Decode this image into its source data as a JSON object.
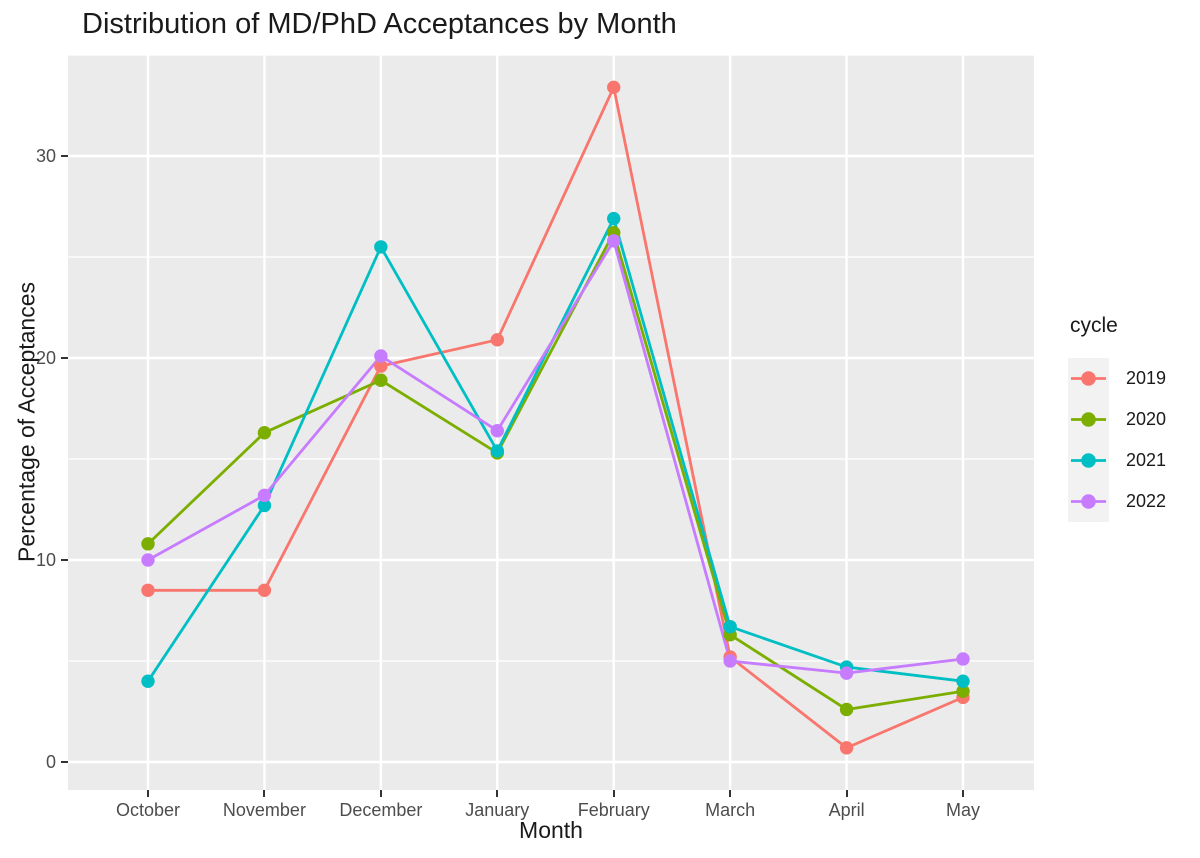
{
  "title": "Distribution of MD/PhD Acceptances by Month",
  "chart_data": {
    "type": "line",
    "title": "Distribution of MD/PhD Acceptances by Month",
    "xlabel": "Month",
    "ylabel": "Percentage of Acceptances",
    "categories": [
      "October",
      "November",
      "December",
      "January",
      "February",
      "March",
      "April",
      "May"
    ],
    "series": [
      {
        "name": "2019",
        "color": "#F8766D",
        "values": [
          8.5,
          8.5,
          19.6,
          20.9,
          33.4,
          5.2,
          0.7,
          3.2
        ]
      },
      {
        "name": "2020",
        "color": "#7CAE00",
        "values": [
          10.8,
          16.3,
          18.9,
          15.3,
          26.2,
          6.3,
          2.6,
          3.5
        ]
      },
      {
        "name": "2021",
        "color": "#00BFC4",
        "values": [
          4.0,
          12.7,
          25.5,
          15.4,
          26.9,
          6.7,
          4.7,
          4.0
        ]
      },
      {
        "name": "2022",
        "color": "#C77CFF",
        "values": [
          10.0,
          13.2,
          20.1,
          16.4,
          25.8,
          5.0,
          4.4,
          5.1
        ]
      }
    ],
    "ylim": [
      -1,
      35.2
    ],
    "yticks": [
      0,
      10,
      20,
      30
    ],
    "yticks_minor": [
      5,
      15,
      25,
      35
    ],
    "grid": "major-and-minor-horizontal, major-vertical",
    "legend_title": "cycle",
    "legend_position": "right"
  },
  "colors": {
    "panel_background": "#EBEBEB",
    "gridline": "#FFFFFF",
    "tick_text": "#4D4D4D",
    "text": "#1A1A1A",
    "legend_key_background": "#F2F2F2"
  }
}
